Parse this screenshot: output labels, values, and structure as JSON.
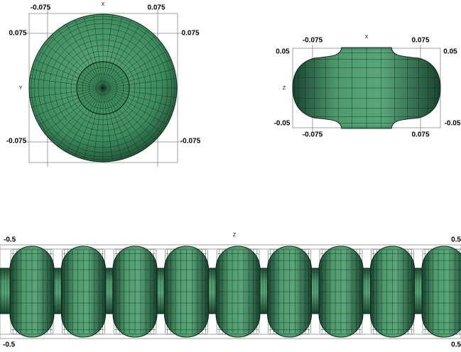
{
  "views": [
    {
      "labels": [
        "X",
        "-0.075",
        "0.075",
        "0.075",
        "0.075",
        "Y",
        "-0.075",
        "-0.075"
      ]
    },
    {
      "labels": [
        "X",
        "-0.075",
        "0.075",
        "0.05",
        "0.05",
        "Z",
        "-0.05",
        "-0.05",
        "-0.075",
        "0.075"
      ]
    },
    {
      "labels": [
        "Z",
        "-0.5",
        "0.5",
        "-0.5",
        "0.5"
      ]
    }
  ]
}
